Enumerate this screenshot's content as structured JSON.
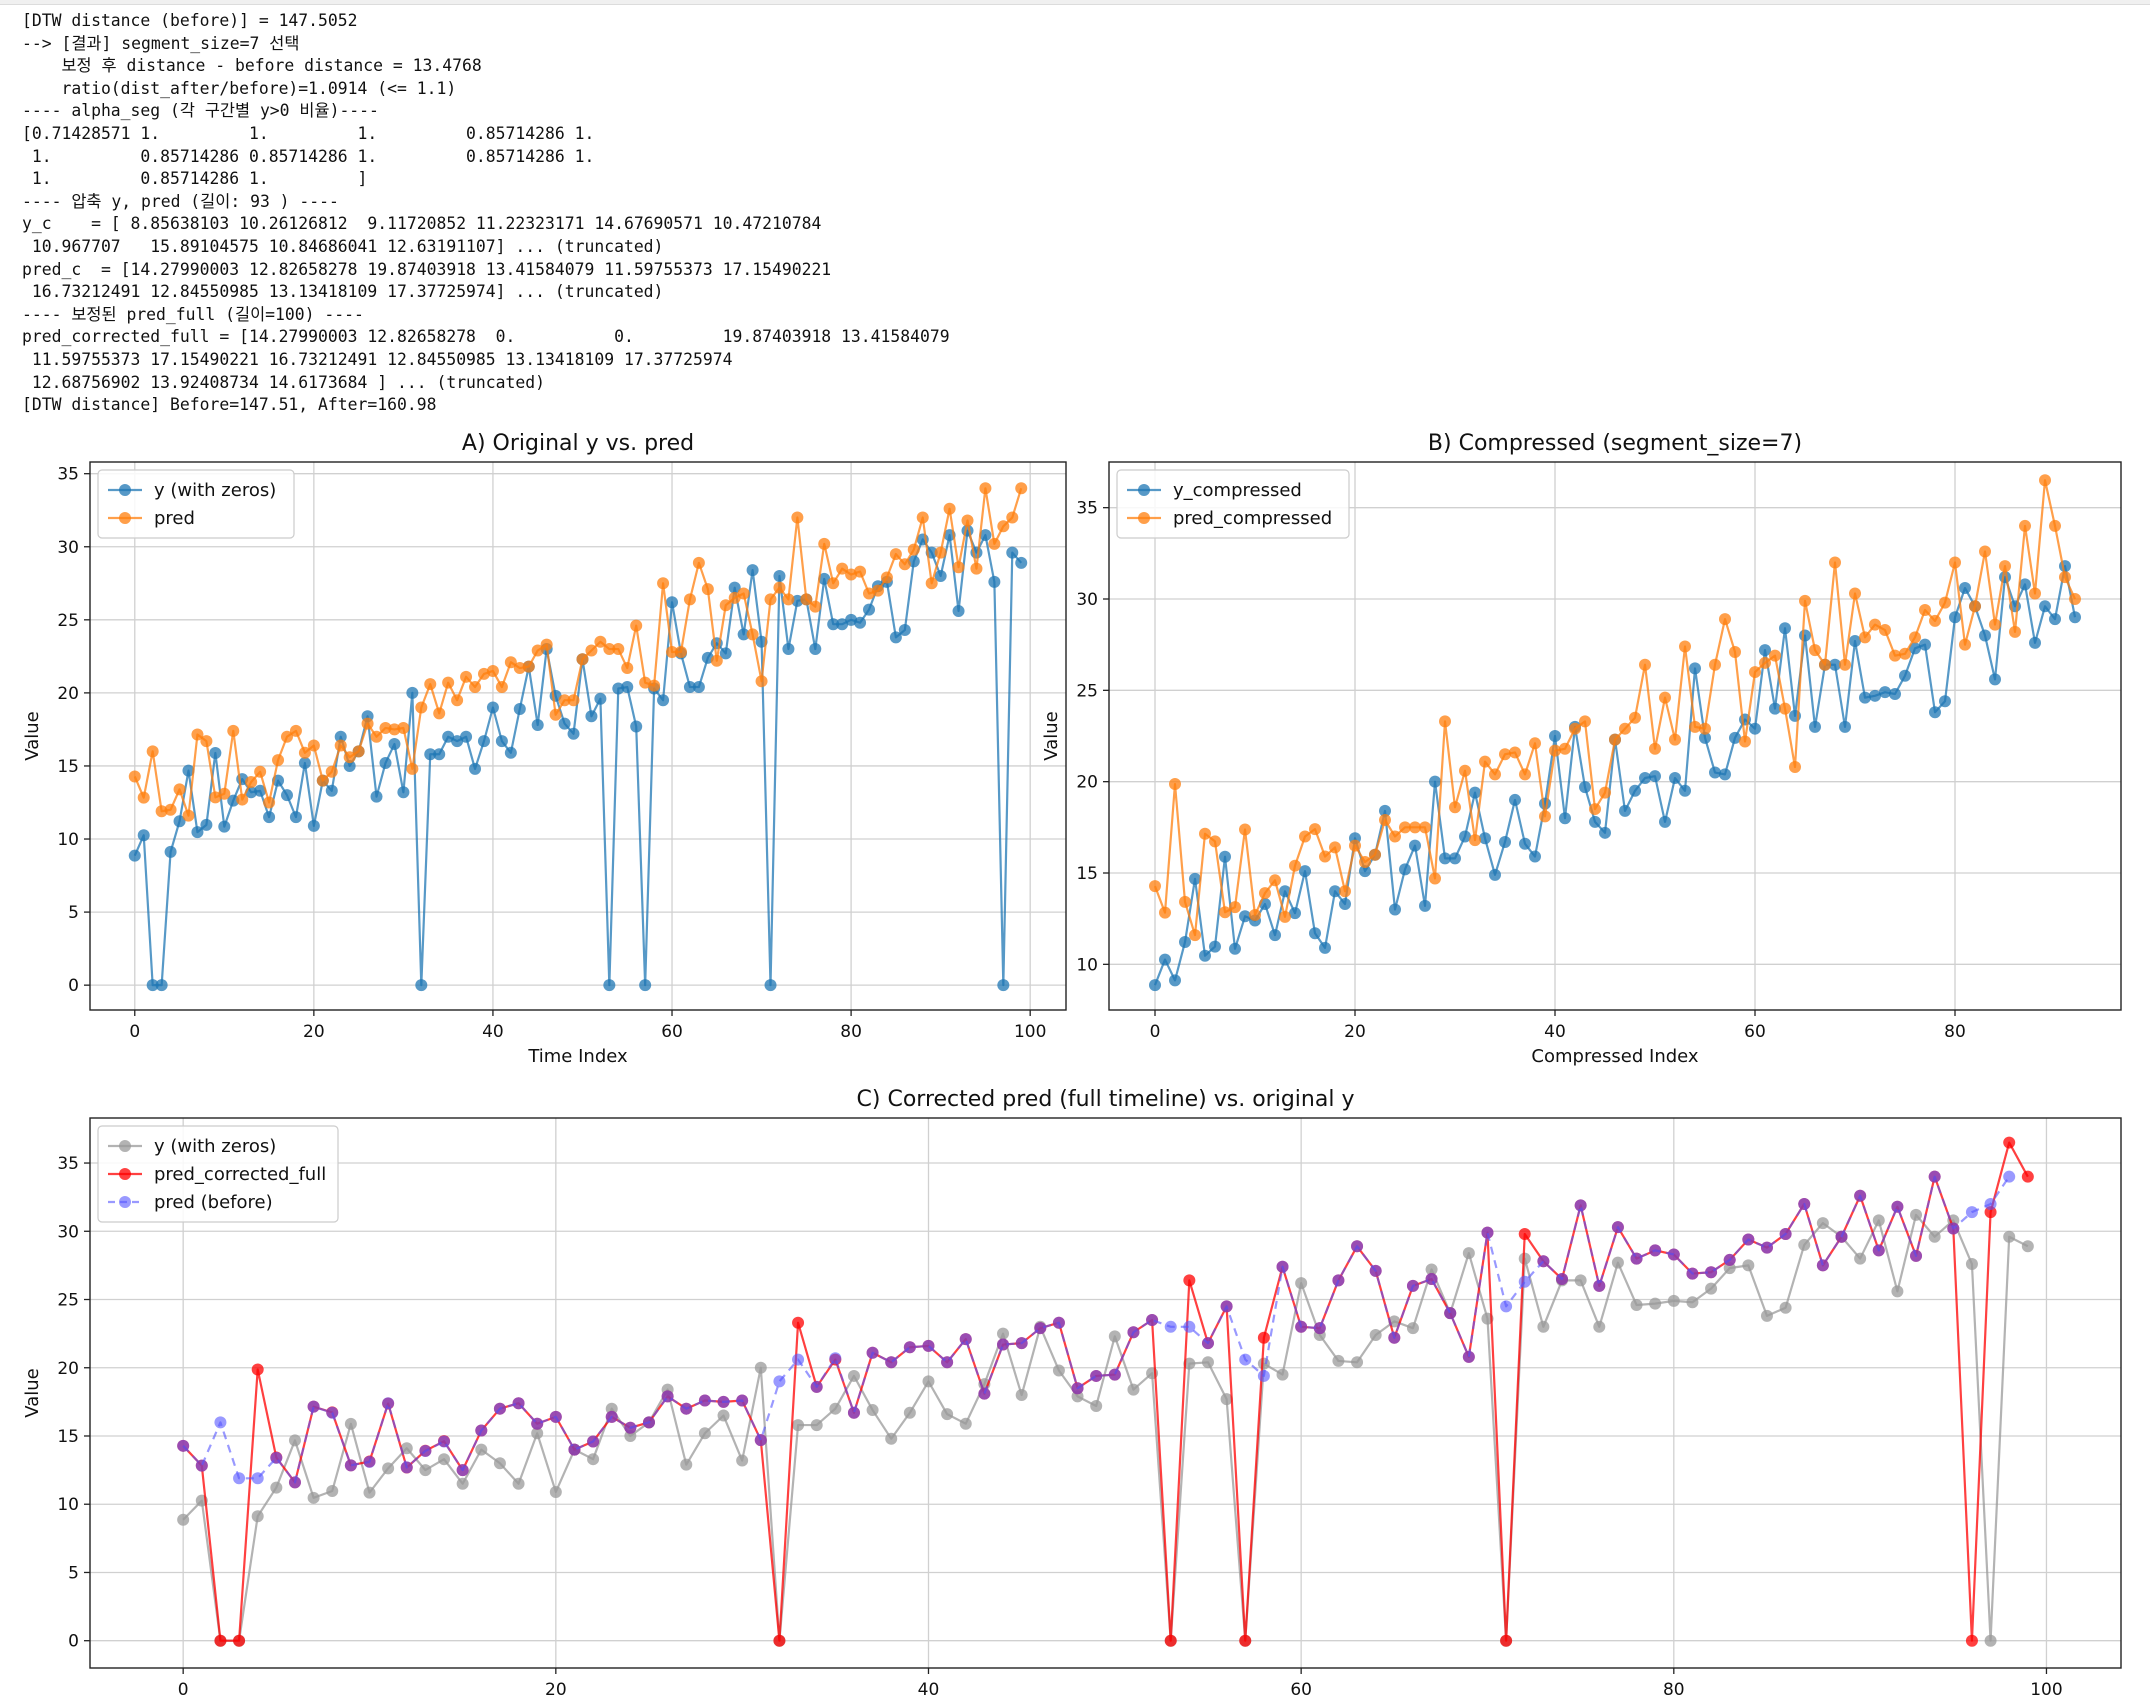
{
  "console": {
    "lines": [
      "[DTW distance (before)] = 147.5052",
      "--> [결과] segment_size=7 선택",
      "    보정 후 distance - before distance = 13.4768",
      "    ratio(dist_after/before)=1.0914 (<= 1.1)",
      "---- alpha_seg (각 구간별 y>0 비율)----",
      "[0.71428571 1.         1.         1.         0.85714286 1.",
      " 1.         0.85714286 0.85714286 1.         0.85714286 1.",
      " 1.         0.85714286 1.         ]",
      "---- 압축 y, pred (길이: 93 ) ----",
      "y_c    = [ 8.85638103 10.26126812  9.11720852 11.22323171 14.67690571 10.47210784",
      " 10.967707   15.89104575 10.84686041 12.63191107] ... (truncated)",
      "pred_c  = [14.27990003 12.82658278 19.87403918 13.41584079 11.59755373 17.15490221",
      " 16.73212491 12.84550985 13.13418109 17.37725974] ... (truncated)",
      "---- 보정된 pred_full (길이=100) ----",
      "pred_corrected_full = [14.27990003 12.82658278  0.          0.         19.87403918 13.41584079",
      " 11.59755373 17.15490221 16.73212491 12.84550985 13.13418109 17.37725974",
      " 12.68756902 13.92408734 14.6173684 ] ... (truncated)",
      "[DTW distance] Before=147.51, After=160.98"
    ]
  },
  "colors": {
    "blue": "#1f77b4",
    "orange": "#ff7f0e",
    "gray": "#999999",
    "red": "#ff0000",
    "purple": "#660066",
    "dashed_blue": "#5555ff",
    "grid": "#d0d0d0"
  },
  "chart_data": [
    {
      "id": "A",
      "type": "line",
      "title": "A) Original y vs. pred",
      "xlabel": "Time Index",
      "ylabel": "Value",
      "xlim": [
        -5,
        104
      ],
      "ylim": [
        -1.7,
        35.8
      ],
      "xticks": [
        0,
        20,
        40,
        60,
        80,
        100
      ],
      "yticks": [
        0,
        5,
        10,
        15,
        20,
        25,
        30,
        35
      ],
      "grid": true,
      "legend_position": "top-left",
      "series": [
        {
          "name": "y (with zeros)",
          "color_key": "blue",
          "values": [
            8.86,
            10.26,
            0,
            0,
            9.12,
            11.22,
            14.68,
            10.47,
            10.97,
            15.89,
            10.85,
            12.63,
            14.1,
            13.2,
            13.3,
            11.5,
            14.0,
            13.0,
            11.5,
            15.2,
            10.9,
            14.0,
            13.3,
            17.0,
            15.0,
            16.0,
            18.4,
            12.9,
            15.2,
            16.5,
            13.2,
            20.0,
            0,
            15.8,
            15.8,
            17.0,
            16.7,
            17.0,
            14.8,
            16.7,
            19.0,
            16.7,
            15.9,
            18.9,
            21.8,
            17.8,
            23.0,
            19.8,
            17.9,
            17.2,
            22.3,
            18.4,
            19.6,
            0,
            20.3,
            20.4,
            17.7,
            0,
            20.3,
            19.5,
            26.2,
            22.7,
            20.4,
            20.4,
            22.4,
            23.4,
            22.7,
            27.2,
            24.0,
            28.4,
            23.5,
            0,
            28.0,
            23.0,
            26.3,
            26.4,
            23.0,
            27.8,
            24.7,
            24.7,
            25.0,
            24.8,
            25.7,
            27.3,
            27.6,
            23.8,
            24.3,
            29.0,
            30.5,
            29.6,
            28.0,
            30.8,
            25.6,
            31.1,
            29.6,
            30.8,
            27.6,
            0,
            29.6,
            28.9
          ]
        },
        {
          "name": "pred",
          "color_key": "orange",
          "values": [
            14.28,
            12.83,
            16.0,
            11.9,
            12.0,
            13.4,
            11.6,
            17.15,
            16.7,
            12.85,
            13.1,
            17.4,
            12.7,
            13.9,
            14.6,
            12.5,
            15.4,
            17.0,
            17.4,
            15.9,
            16.4,
            14.0,
            14.6,
            16.4,
            15.6,
            16.0,
            17.9,
            17.0,
            17.6,
            17.5,
            17.6,
            14.8,
            19.0,
            20.6,
            18.6,
            20.7,
            19.5,
            21.1,
            20.4,
            21.3,
            21.5,
            20.4,
            22.1,
            21.7,
            21.8,
            22.9,
            23.3,
            18.5,
            19.5,
            19.5,
            22.3,
            22.9,
            23.5,
            23.0,
            23.0,
            21.7,
            24.6,
            20.7,
            20.5,
            27.5,
            22.8,
            22.8,
            26.4,
            28.9,
            27.1,
            22.2,
            26.0,
            26.5,
            26.8,
            24.0,
            20.8,
            26.4,
            27.2,
            26.4,
            32.0,
            26.4,
            25.9,
            30.2,
            27.5,
            28.5,
            28.1,
            28.3,
            26.8,
            27.0,
            27.9,
            29.5,
            28.8,
            29.8,
            32.0,
            27.5,
            29.6,
            32.6,
            28.6,
            31.8,
            28.5,
            34.0,
            30.2,
            31.4,
            32.0,
            34.0
          ]
        }
      ]
    },
    {
      "id": "B",
      "type": "line",
      "title": "B) Compressed (segment_size=7)",
      "xlabel": "Compressed Index",
      "ylabel": "Value",
      "xlim": [
        -4.6,
        96.6
      ],
      "ylim": [
        7.5,
        37.5
      ],
      "xticks": [
        0,
        20,
        40,
        60,
        80
      ],
      "yticks": [
        10,
        15,
        20,
        25,
        30,
        35
      ],
      "grid": true,
      "legend_position": "top-left",
      "series": [
        {
          "name": "y_compressed",
          "color_key": "blue",
          "values": [
            8.86,
            10.26,
            9.12,
            11.22,
            14.68,
            10.47,
            10.97,
            15.89,
            10.85,
            12.63,
            12.4,
            13.3,
            11.6,
            14.0,
            12.8,
            15.1,
            11.7,
            10.9,
            14.0,
            13.3,
            16.9,
            15.1,
            16.0,
            18.4,
            13.0,
            15.2,
            16.5,
            13.2,
            20.0,
            15.8,
            15.8,
            17.0,
            19.4,
            16.9,
            14.9,
            16.7,
            19.0,
            16.6,
            15.9,
            18.8,
            22.5,
            18.0,
            23.0,
            19.7,
            17.8,
            17.2,
            22.3,
            18.4,
            19.5,
            20.2,
            20.3,
            17.8,
            20.2,
            19.5,
            26.2,
            22.4,
            20.5,
            20.4,
            22.4,
            23.4,
            22.9,
            27.2,
            24.0,
            28.4,
            23.6,
            28.0,
            23.0,
            26.4,
            26.4,
            23.0,
            27.7,
            24.6,
            24.7,
            24.9,
            24.8,
            25.8,
            27.3,
            27.5,
            23.8,
            24.4,
            29.0,
            30.6,
            29.6,
            28.0,
            25.6,
            31.2,
            29.6,
            30.8,
            27.6,
            29.6,
            28.9,
            31.8,
            29.0
          ]
        },
        {
          "name": "pred_compressed",
          "color_key": "orange",
          "values": [
            14.28,
            12.83,
            19.87,
            13.42,
            11.6,
            17.15,
            16.73,
            12.85,
            13.13,
            17.38,
            12.7,
            13.9,
            14.6,
            12.6,
            15.4,
            17.0,
            17.4,
            15.9,
            16.4,
            14.0,
            16.5,
            15.6,
            16.0,
            17.9,
            17.0,
            17.5,
            17.5,
            17.5,
            14.7,
            23.3,
            18.6,
            20.6,
            16.8,
            21.1,
            20.4,
            21.5,
            21.6,
            20.4,
            22.1,
            18.1,
            21.7,
            21.8,
            22.9,
            23.3,
            18.5,
            19.4,
            22.3,
            22.9,
            23.5,
            26.4,
            21.8,
            24.6,
            22.3,
            27.4,
            23.0,
            22.9,
            26.4,
            28.9,
            27.1,
            22.2,
            26.0,
            26.5,
            26.9,
            24.0,
            20.8,
            29.9,
            27.2,
            26.4,
            32.0,
            26.4,
            30.3,
            27.9,
            28.6,
            28.3,
            26.9,
            27.0,
            27.9,
            29.4,
            28.8,
            29.8,
            32.0,
            27.5,
            29.6,
            32.6,
            28.6,
            31.8,
            28.2,
            34.0,
            30.3,
            36.5,
            34.0,
            31.2,
            30.0
          ]
        }
      ]
    },
    {
      "id": "C",
      "type": "line",
      "title": "C) Corrected pred (full timeline) vs. original y",
      "xlabel": "",
      "ylabel": "Value",
      "xlim": [
        -5,
        104
      ],
      "ylim": [
        -2,
        38.3
      ],
      "xticks": [
        0,
        20,
        40,
        60,
        80,
        100
      ],
      "yticks": [
        0,
        5,
        10,
        15,
        20,
        25,
        30,
        35
      ],
      "grid": true,
      "legend_position": "top-left",
      "series": [
        {
          "name": "y (with zeros)",
          "color_key": "gray",
          "values": [
            8.86,
            10.26,
            0,
            0,
            9.12,
            11.22,
            14.68,
            10.47,
            10.97,
            15.89,
            10.85,
            12.63,
            14.1,
            12.5,
            13.3,
            11.5,
            14.0,
            13.0,
            11.5,
            15.2,
            10.9,
            14.0,
            13.3,
            17.0,
            15.0,
            16.0,
            18.4,
            12.9,
            15.2,
            16.5,
            13.2,
            20.0,
            0,
            15.8,
            15.8,
            17.0,
            19.4,
            16.9,
            14.8,
            16.7,
            19.0,
            16.6,
            15.9,
            18.8,
            22.5,
            18.0,
            23.0,
            19.8,
            17.9,
            17.2,
            22.3,
            18.4,
            19.6,
            0,
            20.3,
            20.4,
            17.7,
            0,
            20.3,
            19.5,
            26.2,
            22.4,
            20.5,
            20.4,
            22.4,
            23.4,
            22.9,
            27.2,
            24.0,
            28.4,
            23.6,
            0,
            28.0,
            23.0,
            26.4,
            26.4,
            23.0,
            27.7,
            24.6,
            24.7,
            24.9,
            24.8,
            25.8,
            27.3,
            27.5,
            23.8,
            24.4,
            29.0,
            30.6,
            29.6,
            28.0,
            30.8,
            25.6,
            31.2,
            29.6,
            30.8,
            27.6,
            0,
            29.6,
            28.9
          ]
        },
        {
          "name": "pred_corrected_full",
          "color_key": "red",
          "values": [
            14.28,
            12.83,
            0,
            0,
            19.87,
            13.42,
            11.6,
            17.15,
            16.73,
            12.85,
            13.13,
            17.38,
            12.69,
            13.92,
            14.62,
            12.5,
            15.4,
            17.0,
            17.4,
            15.9,
            16.4,
            14.0,
            14.6,
            16.4,
            15.6,
            16.0,
            17.9,
            17.0,
            17.6,
            17.5,
            17.6,
            14.7,
            0,
            23.3,
            18.6,
            20.6,
            16.7,
            21.1,
            20.4,
            21.5,
            21.6,
            20.4,
            22.1,
            18.1,
            21.7,
            21.8,
            22.9,
            23.3,
            18.5,
            19.4,
            19.5,
            22.6,
            23.5,
            0,
            26.4,
            21.8,
            24.5,
            0,
            22.2,
            27.4,
            23.0,
            22.9,
            26.4,
            28.9,
            27.1,
            22.2,
            26.0,
            26.5,
            24.0,
            20.8,
            29.9,
            0,
            29.8,
            27.8,
            26.5,
            31.9,
            26.0,
            30.3,
            28.0,
            28.6,
            28.3,
            26.9,
            27.0,
            27.9,
            29.4,
            28.8,
            29.8,
            32.0,
            27.5,
            29.6,
            32.6,
            28.6,
            31.8,
            28.2,
            34.0,
            30.2,
            0,
            31.4,
            36.5,
            34.0
          ]
        },
        {
          "name": "pred (before)",
          "color_key": "dashed_blue",
          "values": [
            14.28,
            12.83,
            16.0,
            11.9,
            11.9,
            13.4,
            11.6,
            17.15,
            16.7,
            12.85,
            13.1,
            17.4,
            12.7,
            13.9,
            14.6,
            12.5,
            15.4,
            17.0,
            17.4,
            15.9,
            16.4,
            14.0,
            14.6,
            16.4,
            15.6,
            16.0,
            17.9,
            17.0,
            17.6,
            17.5,
            17.6,
            14.7,
            19.0,
            20.6,
            18.6,
            20.7,
            16.7,
            21.1,
            20.4,
            21.5,
            21.6,
            20.4,
            22.1,
            18.1,
            21.7,
            21.8,
            22.9,
            23.3,
            18.5,
            19.4,
            19.5,
            22.6,
            23.5,
            23.0,
            23.0,
            21.8,
            24.5,
            20.6,
            19.4,
            27.4,
            23.0,
            22.9,
            26.4,
            28.9,
            27.1,
            22.2,
            26.0,
            26.5,
            24.0,
            20.8,
            29.9,
            24.5,
            26.3,
            27.8,
            26.5,
            31.9,
            26.0,
            30.3,
            28.0,
            28.6,
            28.3,
            26.9,
            27.0,
            27.9,
            29.4,
            28.8,
            29.8,
            32.0,
            27.5,
            29.6,
            32.6,
            28.6,
            31.8,
            28.2,
            34.0,
            30.2,
            31.4,
            32.0,
            34.0
          ]
        }
      ]
    }
  ]
}
